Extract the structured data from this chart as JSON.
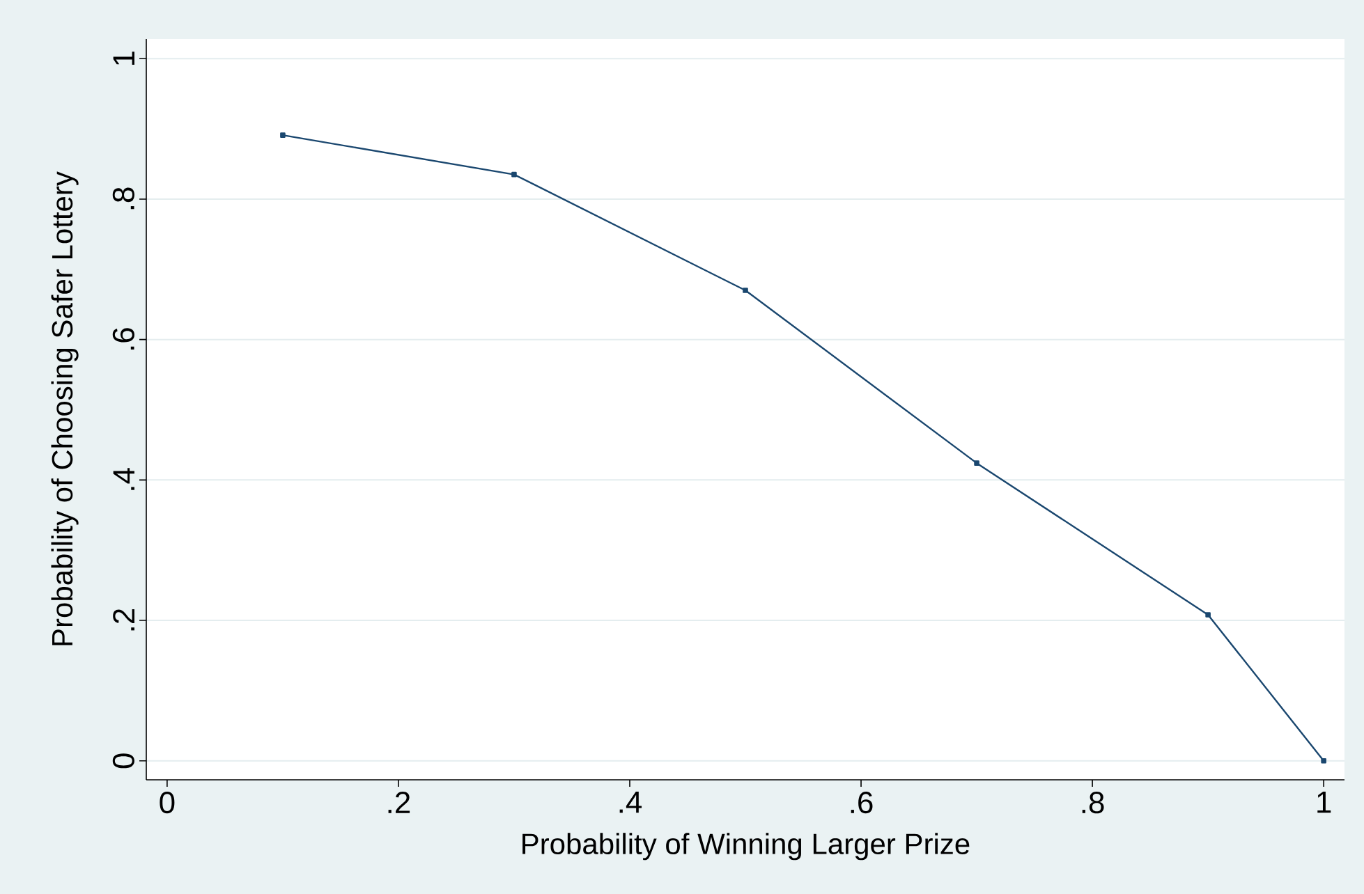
{
  "chart_data": {
    "type": "line",
    "xlabel": "Probability of Winning Larger Prize",
    "ylabel": "Probability of Choosing Safer Lottery",
    "x": [
      0.1,
      0.3,
      0.5,
      0.7,
      0.9,
      1.0
    ],
    "series": [
      {
        "color": "#1a476f",
        "values": [
          0.891,
          0.835,
          0.67,
          0.424,
          0.208,
          0.0
        ]
      }
    ],
    "xlim": [
      -0.018,
      1.018
    ],
    "ylim": [
      -0.027,
      1.028
    ],
    "xticks": [
      0,
      {
        "value": 0.2,
        "label": ".2"
      },
      {
        "value": 0.4,
        "label": ".4"
      },
      {
        "value": 0.6,
        "label": ".6"
      },
      {
        "value": 0.8,
        "label": ".8"
      },
      1
    ],
    "yticks": [
      0,
      {
        "value": 0.2,
        "label": ".2"
      },
      {
        "value": 0.4,
        "label": ".4"
      },
      {
        "value": 0.6,
        "label": ".6"
      },
      {
        "value": 0.8,
        "label": ".8"
      },
      1
    ],
    "grid": "y",
    "marker": "square",
    "line_style": "solid"
  }
}
